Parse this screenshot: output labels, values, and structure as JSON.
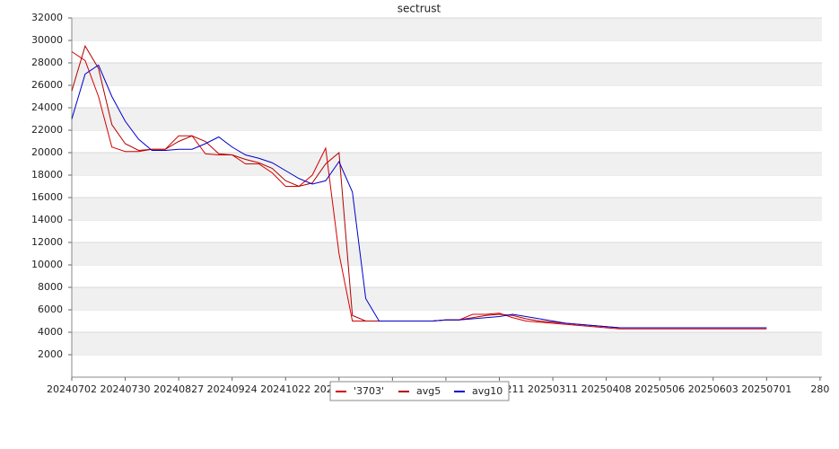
{
  "chart_data": {
    "type": "line",
    "title": "sectrust",
    "x": [
      "20240702",
      "20240709",
      "20240716",
      "20240723",
      "20240730",
      "20240806",
      "20240813",
      "20240820",
      "20240827",
      "20240903",
      "20240910",
      "20240917",
      "20240924",
      "20241001",
      "20241008",
      "20241015",
      "20241022",
      "20241029",
      "20241105",
      "20241112",
      "20241119",
      "20241126",
      "20241203",
      "20241210",
      "20241217",
      "20241224",
      "20241231",
      "20250107",
      "20250114",
      "20250121",
      "20250128",
      "20250204",
      "20250211",
      "20250218",
      "20250225",
      "20250304",
      "20250311",
      "20250318",
      "20250325",
      "20250401",
      "20250408",
      "20250415",
      "20250422",
      "20250429",
      "20250506",
      "20250513",
      "20250520",
      "20250527",
      "20250603",
      "20250610",
      "20250617",
      "20250624",
      "20250701"
    ],
    "series": [
      {
        "name": "'3703'",
        "color": "#d40000",
        "values": [
          29000,
          28200,
          25000,
          20500,
          20100,
          20100,
          20300,
          20300,
          21500,
          21500,
          19900,
          19800,
          19800,
          19000,
          19000,
          18200,
          17000,
          17000,
          18000,
          20400,
          11000,
          5000,
          5000,
          5000,
          5000,
          5000,
          5000,
          5000,
          5100,
          5100,
          5600,
          5600,
          5700,
          5300,
          5000,
          4900,
          4800,
          4700,
          4600,
          4500,
          4400,
          4300,
          4300,
          4300,
          4300,
          4300,
          4300,
          4300,
          4300,
          4300,
          4300,
          4300,
          4300
        ]
      },
      {
        "name": "avg5",
        "color": "#b00000",
        "values": [
          25500,
          29500,
          27500,
          22500,
          20800,
          20200,
          20300,
          20300,
          21000,
          21500,
          21000,
          19900,
          19800,
          19400,
          19100,
          18600,
          17500,
          17000,
          17300,
          19000,
          20000,
          5500,
          5000,
          5000,
          5000,
          5000,
          5000,
          5000,
          5100,
          5100,
          5300,
          5500,
          5600,
          5500,
          5200,
          5000,
          4900,
          4800,
          4700,
          4600,
          4500,
          4400,
          4400,
          4400,
          4400,
          4400,
          4400,
          4400,
          4400,
          4400,
          4400,
          4400,
          4400
        ]
      },
      {
        "name": "avg10",
        "color": "#0000cc",
        "values": [
          23000,
          27000,
          27800,
          25000,
          22800,
          21200,
          20200,
          20200,
          20300,
          20300,
          20800,
          21400,
          20500,
          19800,
          19500,
          19100,
          18400,
          17700,
          17200,
          17500,
          19200,
          16500,
          7000,
          5000,
          5000,
          5000,
          5000,
          5000,
          5100,
          5100,
          5200,
          5300,
          5400,
          5600,
          5400,
          5200,
          5000,
          4800,
          4700,
          4600,
          4500,
          4400,
          4400,
          4400,
          4400,
          4400,
          4400,
          4400,
          4400,
          4400,
          4400,
          4400,
          4400
        ]
      }
    ],
    "xlim": [
      "20240702",
      "20250730"
    ],
    "xticks": [
      "20240702",
      "20240730",
      "20240827",
      "20240924",
      "20241022",
      "20241119",
      "20241217",
      "20250114",
      "20250211",
      "20250311",
      "20250408",
      "20250506",
      "20250603",
      "20250701",
      {
        "value": "20250729",
        "label": "280"
      }
    ],
    "ylim": [
      0,
      32000
    ],
    "yticks": [
      2000,
      4000,
      6000,
      8000,
      10000,
      12000,
      14000,
      16000,
      18000,
      20000,
      22000,
      24000,
      26000,
      28000,
      30000,
      32000
    ],
    "grid": true,
    "legend": "bottom"
  }
}
